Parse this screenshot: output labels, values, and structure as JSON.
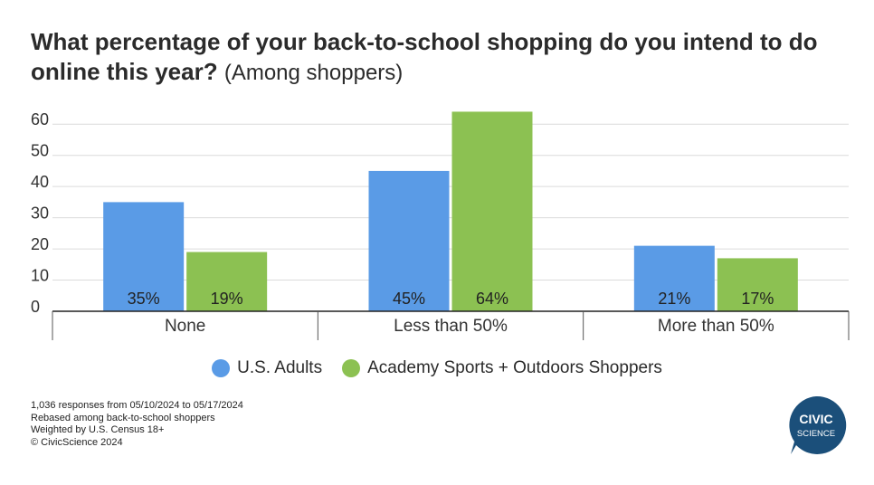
{
  "title": {
    "main": "What percentage of your back-to-school shopping do you intend to do online this year?",
    "sub": "(Among shoppers)"
  },
  "chart_data": {
    "type": "bar",
    "categories": [
      "None",
      "Less than 50%",
      "More than 50%"
    ],
    "series": [
      {
        "name": "U.S. Adults",
        "values": [
          35,
          45,
          21
        ],
        "labels": [
          "35%",
          "45%",
          "21%"
        ],
        "color": "#5a9be6"
      },
      {
        "name": "Academy Sports + Outdoors Shoppers",
        "values": [
          19,
          64,
          17
        ],
        "labels": [
          "19%",
          "64%",
          "17%"
        ],
        "color": "#8cc152"
      }
    ],
    "yticks": [
      0,
      10,
      20,
      30,
      40,
      50,
      60
    ],
    "ylim": [
      0,
      65
    ],
    "grid": true,
    "legend": "bottom"
  },
  "footnotes": [
    "1,036 responses from 05/10/2024 to 05/17/2024",
    "Rebased among back-to-school shoppers",
    "Weighted by U.S. Census 18+",
    "© CivicScience 2024"
  ],
  "logo": {
    "line1": "CIVIC",
    "line2": "SCIENCE",
    "color": "#1b4f7a"
  }
}
